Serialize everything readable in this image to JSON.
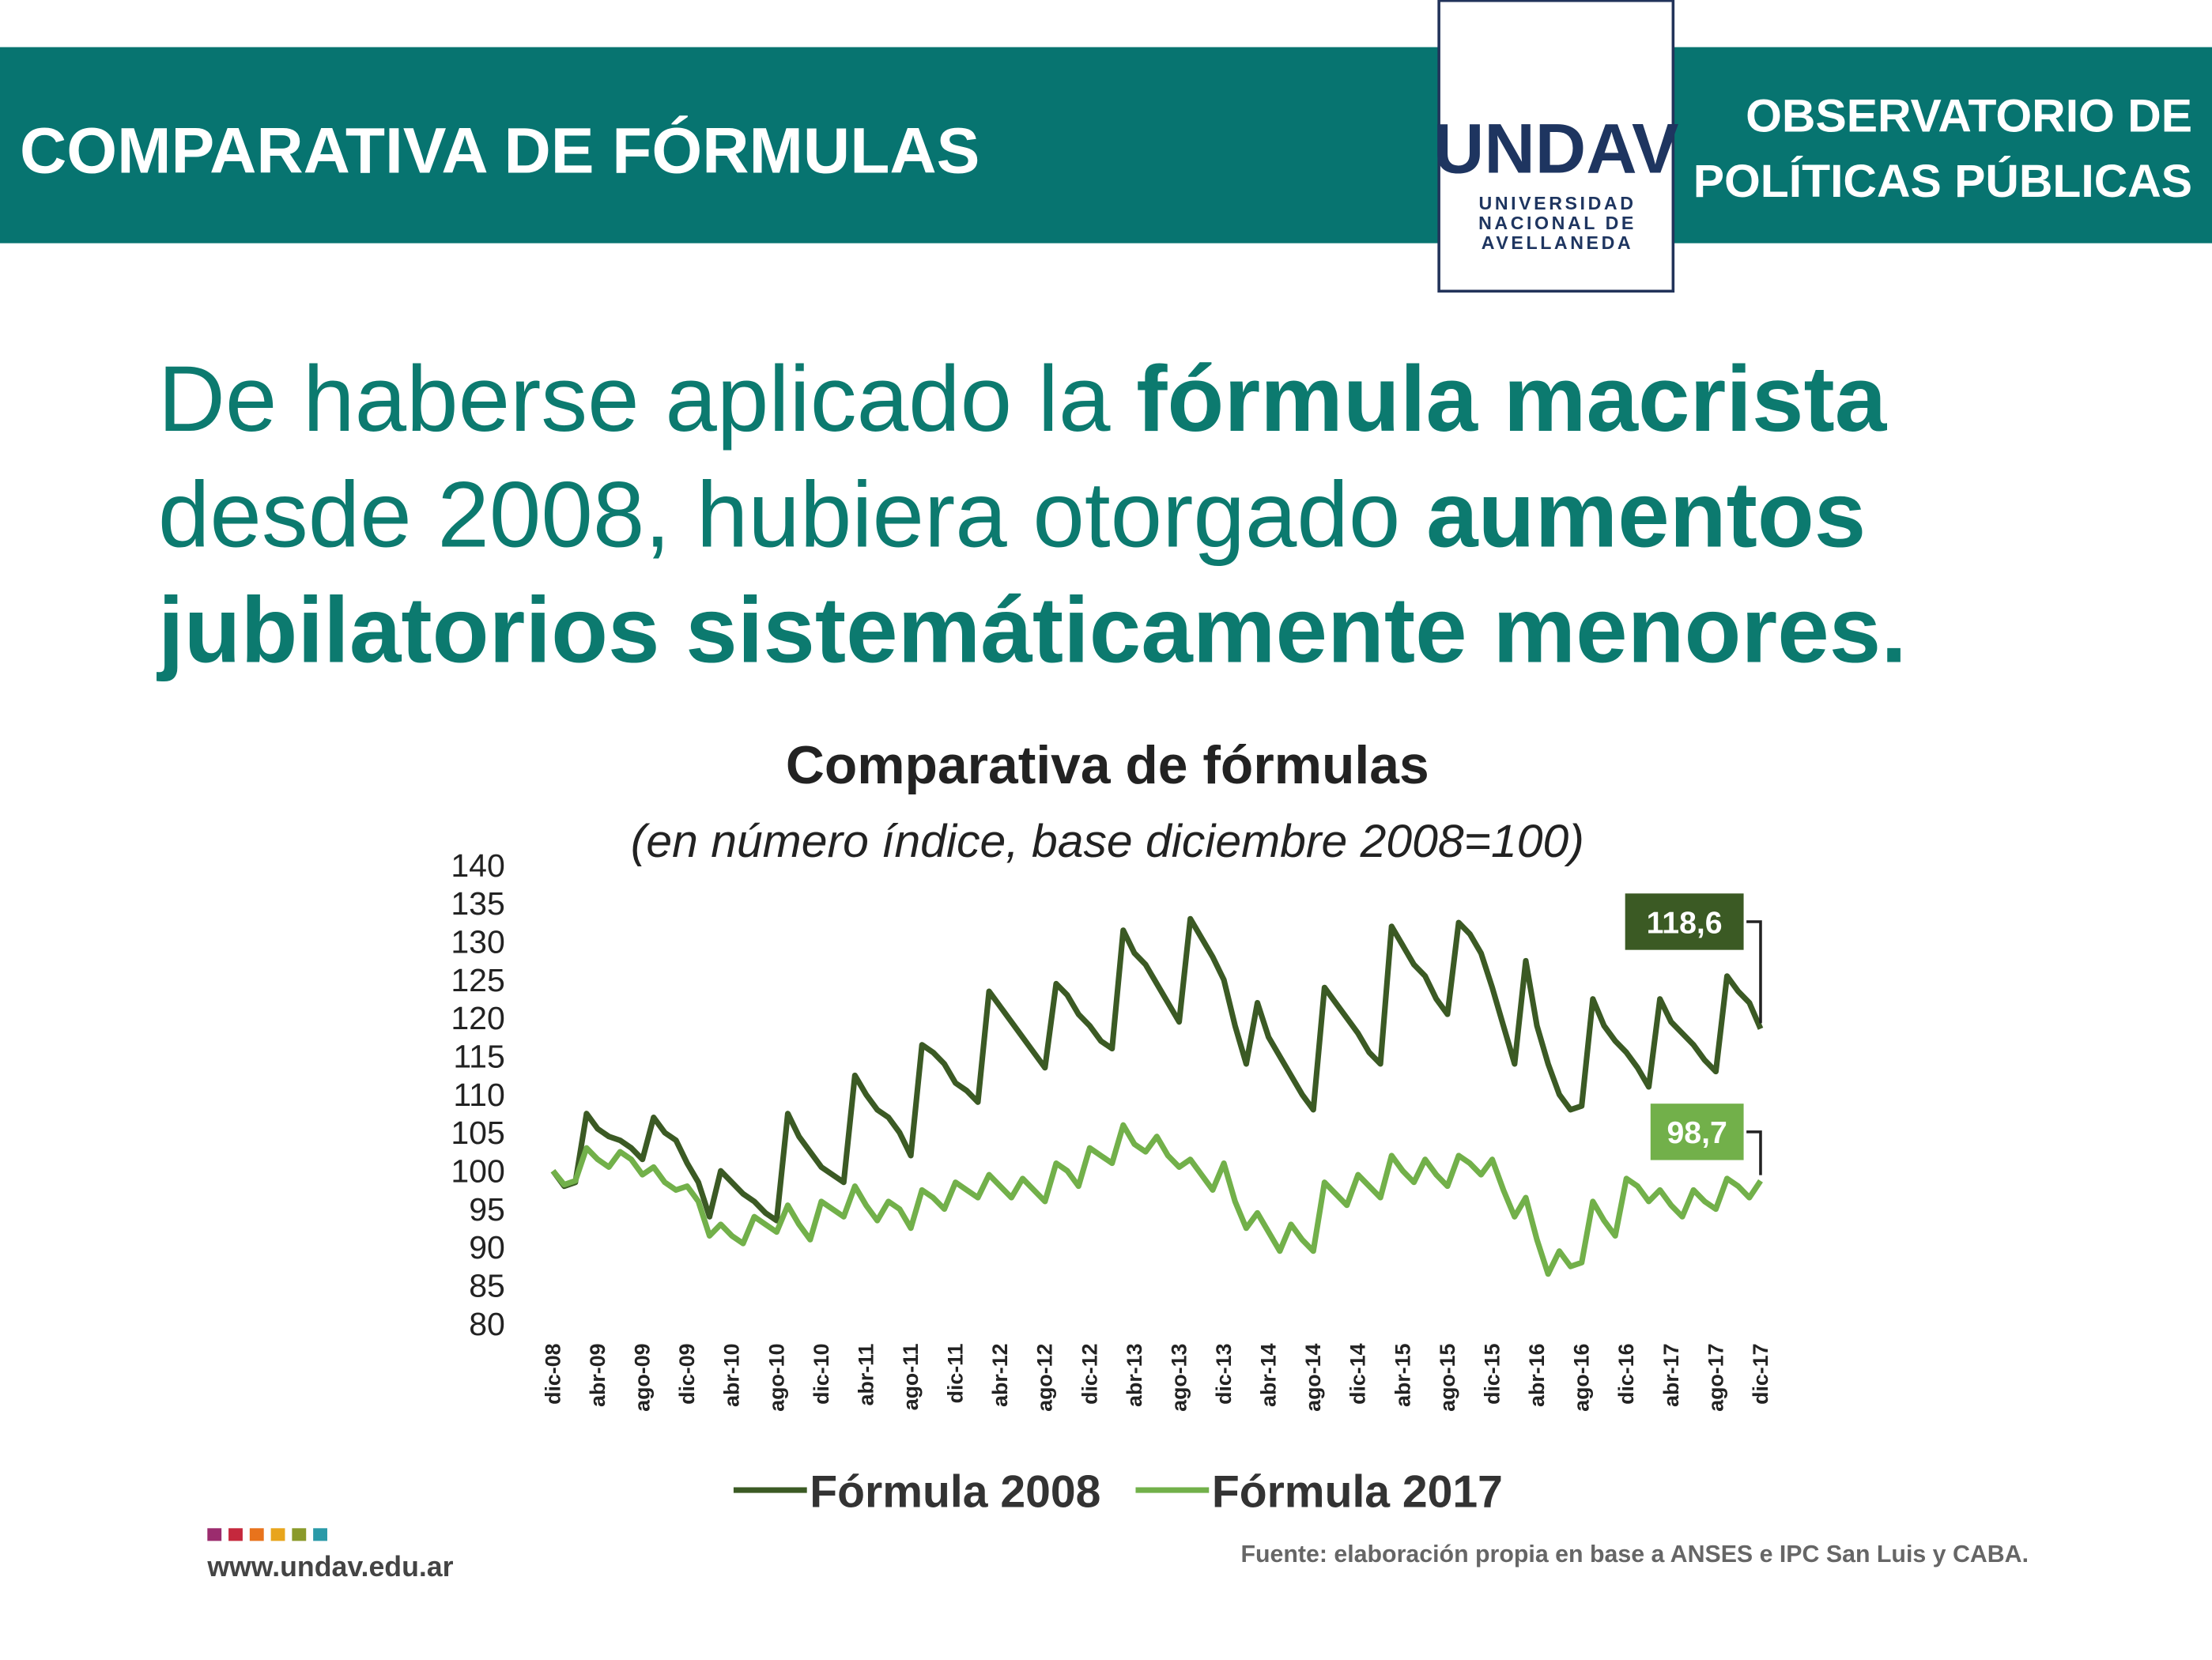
{
  "header": {
    "title": "COMPARATIVA DE FÓRMULAS",
    "logo": "UNDAV",
    "logo_lines": [
      "UNIVERSIDAD",
      "NACIONAL DE",
      "AVELLANEDA"
    ],
    "right_lines": [
      "OBSERVATORIO DE",
      "POLÍTICAS PÚBLICAS"
    ]
  },
  "headline": [
    [
      {
        "text": "De haberse aplicado la ",
        "bold": false
      },
      {
        "text": "fórmula macrista",
        "bold": true
      }
    ],
    [
      {
        "text": "desde 2008, hubiera otorgado ",
        "bold": false
      },
      {
        "text": "aumentos",
        "bold": true
      }
    ],
    [
      {
        "text": "jubilatorios sistemáticamente menores.",
        "bold": true
      }
    ]
  ],
  "chart_data": {
    "type": "line",
    "title": "Comparativa de fórmulas",
    "subtitle": "(en número índice, base diciembre 2008=100)",
    "categories": [
      "dic-08",
      null,
      null,
      null,
      "abr-09",
      null,
      null,
      null,
      "ago-09",
      null,
      null,
      null,
      "dic-09",
      null,
      null,
      null,
      "abr-10",
      null,
      null,
      null,
      "ago-10",
      null,
      null,
      null,
      "dic-10",
      null,
      null,
      null,
      "abr-11",
      null,
      null,
      null,
      "ago-11",
      null,
      null,
      null,
      "dic-11",
      null,
      null,
      null,
      "abr-12",
      null,
      null,
      null,
      "ago-12",
      null,
      null,
      null,
      "dic-12",
      null,
      null,
      null,
      "abr-13",
      null,
      null,
      null,
      "ago-13",
      null,
      null,
      null,
      "dic-13",
      null,
      null,
      null,
      "abr-14",
      null,
      null,
      null,
      "ago-14",
      null,
      null,
      null,
      "dic-14",
      null,
      null,
      null,
      "abr-15",
      null,
      null,
      null,
      "ago-15",
      null,
      null,
      null,
      "dic-15",
      null,
      null,
      null,
      "abr-16",
      null,
      null,
      null,
      "ago-16",
      null,
      null,
      null,
      "dic-16",
      null,
      null,
      null,
      "abr-17",
      null,
      null,
      null,
      "ago-17",
      null,
      null,
      null,
      "dic-17"
    ],
    "series": [
      {
        "name": "Fórmula 2008",
        "color": "#3b5a24",
        "end_label": "118,6",
        "values": [
          100,
          98,
          98.5,
          107.5,
          105.5,
          104.5,
          104,
          103,
          101.5,
          107,
          105,
          104,
          101,
          98.5,
          94,
          100,
          98.5,
          97,
          96,
          94.5,
          93.5,
          107.5,
          104.5,
          102.5,
          100.5,
          99.5,
          98.5,
          112.5,
          110,
          108,
          107,
          105,
          102,
          116.5,
          115.5,
          114,
          111.5,
          110.5,
          109,
          123.5,
          121.5,
          119.5,
          117.5,
          115.5,
          113.5,
          124.5,
          123,
          120.5,
          119,
          117,
          116,
          131.5,
          128.5,
          127,
          124.5,
          122,
          119.5,
          133,
          130.5,
          128,
          125,
          119,
          114,
          122,
          117.5,
          115,
          112.5,
          110,
          108,
          124,
          122,
          120,
          118,
          115.5,
          114,
          132,
          129.5,
          127,
          125.5,
          122.5,
          120.5,
          132.5,
          131,
          128.5,
          124,
          119,
          114,
          127.5,
          119,
          114,
          110,
          108,
          108.5,
          122.5,
          119,
          117,
          115.5,
          113.5,
          111,
          122.5,
          119.5,
          118,
          116.5,
          114.5,
          113,
          125.5,
          123.5,
          122,
          118.6
        ]
      },
      {
        "name": "Fórmula 2017",
        "color": "#72b04a",
        "end_label": "98,7",
        "values": [
          100,
          98.2,
          98.7,
          103,
          101.5,
          100.5,
          102.5,
          101.5,
          99.5,
          100.5,
          98.5,
          97.5,
          98,
          96,
          91.5,
          93,
          91.5,
          90.5,
          94,
          93,
          92,
          95.5,
          93,
          91,
          96,
          95,
          94,
          98,
          95.5,
          93.5,
          96,
          95,
          92.5,
          97.5,
          96.5,
          95,
          98.5,
          97.5,
          96.5,
          99.5,
          98,
          96.5,
          99,
          97.5,
          96,
          101,
          100,
          98,
          103,
          102,
          101,
          106,
          103.5,
          102.5,
          104.5,
          102,
          100.5,
          101.5,
          99.5,
          97.5,
          101,
          96,
          92.5,
          94.5,
          92,
          89.5,
          93,
          91,
          89.5,
          98.5,
          97,
          95.5,
          99.5,
          98,
          96.5,
          102,
          100,
          98.5,
          101.5,
          99.5,
          98,
          102,
          101,
          99.5,
          101.5,
          97.5,
          94,
          96.5,
          91,
          86.5,
          89.5,
          87.5,
          88,
          96,
          93.5,
          91.5,
          99,
          98,
          96,
          97.5,
          95.5,
          94,
          97.5,
          96,
          95,
          99,
          98,
          96.5,
          98.7
        ]
      }
    ],
    "ylim": [
      80,
      140
    ],
    "yticks": [
      80,
      85,
      90,
      95,
      100,
      105,
      110,
      115,
      120,
      125,
      130,
      135,
      140
    ],
    "grid": false,
    "legend": "bottom"
  },
  "footer": {
    "source": "Fuente: elaboración propia en base a ANSES e IPC San Luis y CABA.",
    "url": "www.undav.edu.ar"
  }
}
